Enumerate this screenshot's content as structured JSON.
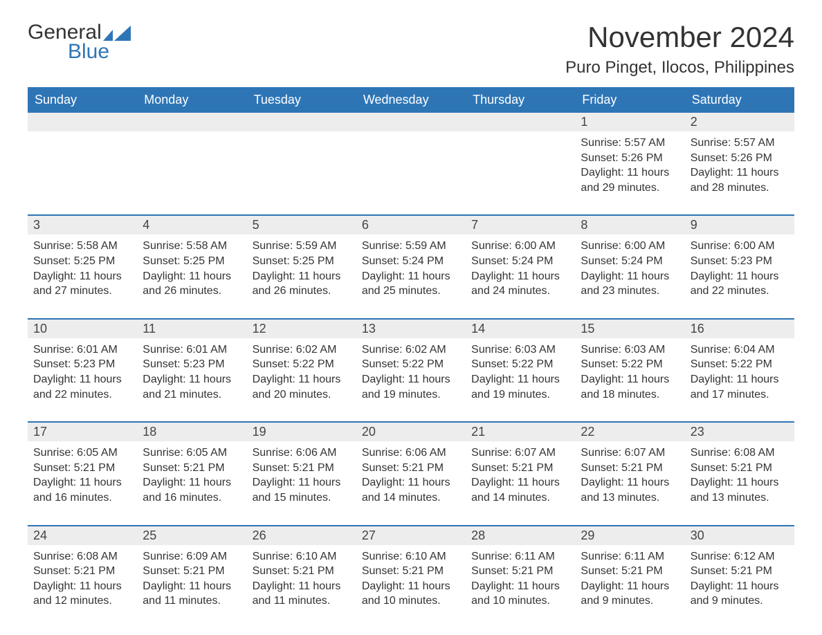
{
  "brand": {
    "word1": "General",
    "word2": "Blue"
  },
  "colors": {
    "header_bg": "#2e75b6",
    "header_text": "#ffffff",
    "accent": "#2e75b6",
    "daynum_bg": "#ededed",
    "text": "#333333",
    "page_bg": "#ffffff"
  },
  "title": "November 2024",
  "location": "Puro Pinget, Ilocos, Philippines",
  "day_names": [
    "Sunday",
    "Monday",
    "Tuesday",
    "Wednesday",
    "Thursday",
    "Friday",
    "Saturday"
  ],
  "weeks": [
    [
      {
        "n": "",
        "sr": "",
        "ss": "",
        "dl": ""
      },
      {
        "n": "",
        "sr": "",
        "ss": "",
        "dl": ""
      },
      {
        "n": "",
        "sr": "",
        "ss": "",
        "dl": ""
      },
      {
        "n": "",
        "sr": "",
        "ss": "",
        "dl": ""
      },
      {
        "n": "",
        "sr": "",
        "ss": "",
        "dl": ""
      },
      {
        "n": "1",
        "sr": "Sunrise: 5:57 AM",
        "ss": "Sunset: 5:26 PM",
        "dl": "Daylight: 11 hours and 29 minutes."
      },
      {
        "n": "2",
        "sr": "Sunrise: 5:57 AM",
        "ss": "Sunset: 5:26 PM",
        "dl": "Daylight: 11 hours and 28 minutes."
      }
    ],
    [
      {
        "n": "3",
        "sr": "Sunrise: 5:58 AM",
        "ss": "Sunset: 5:25 PM",
        "dl": "Daylight: 11 hours and 27 minutes."
      },
      {
        "n": "4",
        "sr": "Sunrise: 5:58 AM",
        "ss": "Sunset: 5:25 PM",
        "dl": "Daylight: 11 hours and 26 minutes."
      },
      {
        "n": "5",
        "sr": "Sunrise: 5:59 AM",
        "ss": "Sunset: 5:25 PM",
        "dl": "Daylight: 11 hours and 26 minutes."
      },
      {
        "n": "6",
        "sr": "Sunrise: 5:59 AM",
        "ss": "Sunset: 5:24 PM",
        "dl": "Daylight: 11 hours and 25 minutes."
      },
      {
        "n": "7",
        "sr": "Sunrise: 6:00 AM",
        "ss": "Sunset: 5:24 PM",
        "dl": "Daylight: 11 hours and 24 minutes."
      },
      {
        "n": "8",
        "sr": "Sunrise: 6:00 AM",
        "ss": "Sunset: 5:24 PM",
        "dl": "Daylight: 11 hours and 23 minutes."
      },
      {
        "n": "9",
        "sr": "Sunrise: 6:00 AM",
        "ss": "Sunset: 5:23 PM",
        "dl": "Daylight: 11 hours and 22 minutes."
      }
    ],
    [
      {
        "n": "10",
        "sr": "Sunrise: 6:01 AM",
        "ss": "Sunset: 5:23 PM",
        "dl": "Daylight: 11 hours and 22 minutes."
      },
      {
        "n": "11",
        "sr": "Sunrise: 6:01 AM",
        "ss": "Sunset: 5:23 PM",
        "dl": "Daylight: 11 hours and 21 minutes."
      },
      {
        "n": "12",
        "sr": "Sunrise: 6:02 AM",
        "ss": "Sunset: 5:22 PM",
        "dl": "Daylight: 11 hours and 20 minutes."
      },
      {
        "n": "13",
        "sr": "Sunrise: 6:02 AM",
        "ss": "Sunset: 5:22 PM",
        "dl": "Daylight: 11 hours and 19 minutes."
      },
      {
        "n": "14",
        "sr": "Sunrise: 6:03 AM",
        "ss": "Sunset: 5:22 PM",
        "dl": "Daylight: 11 hours and 19 minutes."
      },
      {
        "n": "15",
        "sr": "Sunrise: 6:03 AM",
        "ss": "Sunset: 5:22 PM",
        "dl": "Daylight: 11 hours and 18 minutes."
      },
      {
        "n": "16",
        "sr": "Sunrise: 6:04 AM",
        "ss": "Sunset: 5:22 PM",
        "dl": "Daylight: 11 hours and 17 minutes."
      }
    ],
    [
      {
        "n": "17",
        "sr": "Sunrise: 6:05 AM",
        "ss": "Sunset: 5:21 PM",
        "dl": "Daylight: 11 hours and 16 minutes."
      },
      {
        "n": "18",
        "sr": "Sunrise: 6:05 AM",
        "ss": "Sunset: 5:21 PM",
        "dl": "Daylight: 11 hours and 16 minutes."
      },
      {
        "n": "19",
        "sr": "Sunrise: 6:06 AM",
        "ss": "Sunset: 5:21 PM",
        "dl": "Daylight: 11 hours and 15 minutes."
      },
      {
        "n": "20",
        "sr": "Sunrise: 6:06 AM",
        "ss": "Sunset: 5:21 PM",
        "dl": "Daylight: 11 hours and 14 minutes."
      },
      {
        "n": "21",
        "sr": "Sunrise: 6:07 AM",
        "ss": "Sunset: 5:21 PM",
        "dl": "Daylight: 11 hours and 14 minutes."
      },
      {
        "n": "22",
        "sr": "Sunrise: 6:07 AM",
        "ss": "Sunset: 5:21 PM",
        "dl": "Daylight: 11 hours and 13 minutes."
      },
      {
        "n": "23",
        "sr": "Sunrise: 6:08 AM",
        "ss": "Sunset: 5:21 PM",
        "dl": "Daylight: 11 hours and 13 minutes."
      }
    ],
    [
      {
        "n": "24",
        "sr": "Sunrise: 6:08 AM",
        "ss": "Sunset: 5:21 PM",
        "dl": "Daylight: 11 hours and 12 minutes."
      },
      {
        "n": "25",
        "sr": "Sunrise: 6:09 AM",
        "ss": "Sunset: 5:21 PM",
        "dl": "Daylight: 11 hours and 11 minutes."
      },
      {
        "n": "26",
        "sr": "Sunrise: 6:10 AM",
        "ss": "Sunset: 5:21 PM",
        "dl": "Daylight: 11 hours and 11 minutes."
      },
      {
        "n": "27",
        "sr": "Sunrise: 6:10 AM",
        "ss": "Sunset: 5:21 PM",
        "dl": "Daylight: 11 hours and 10 minutes."
      },
      {
        "n": "28",
        "sr": "Sunrise: 6:11 AM",
        "ss": "Sunset: 5:21 PM",
        "dl": "Daylight: 11 hours and 10 minutes."
      },
      {
        "n": "29",
        "sr": "Sunrise: 6:11 AM",
        "ss": "Sunset: 5:21 PM",
        "dl": "Daylight: 11 hours and 9 minutes."
      },
      {
        "n": "30",
        "sr": "Sunrise: 6:12 AM",
        "ss": "Sunset: 5:21 PM",
        "dl": "Daylight: 11 hours and 9 minutes."
      }
    ]
  ]
}
